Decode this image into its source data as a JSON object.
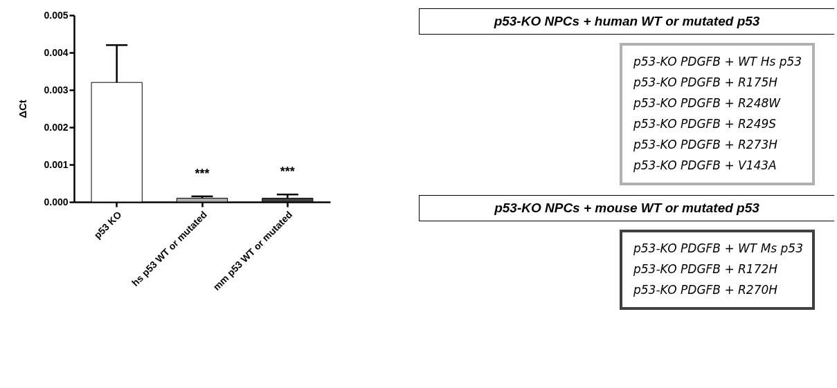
{
  "chart_data": {
    "type": "bar",
    "ylabel": "ΔCt",
    "categories": [
      "p53 KO",
      "hs p53 WT or mutated",
      "mm p53 WT or mutated"
    ],
    "values": [
      0.0032,
      0.0001,
      0.0001
    ],
    "errors": [
      [
        0.0032,
        0.0042
      ],
      [
        0.0001,
        0.00015
      ],
      [
        0.0001,
        0.0002
      ]
    ],
    "colors": [
      "#ffffff",
      "#b0b0b0",
      "#404040"
    ],
    "ylim": [
      0,
      0.005
    ],
    "yticks": [
      {
        "value": 0,
        "label": "0.000"
      },
      0.001,
      0.002,
      0.003,
      0.004,
      0.005
    ],
    "grid": false,
    "annotations": [
      {
        "text": "***",
        "x": "hs p53 WT or mutated",
        "y": 0.00015
      },
      {
        "text": "***",
        "x": "mm p53 WT or mutated",
        "y": 0.0002
      },
      "p53-KO NPCs + human WT or mutated p53",
      "p53-KO PDGFB + WT Hs p53\np53-KO PDGFB + R175H\np53-KO PDGFB + R248W\np53-KO PDGFB + R249S\np53-KO PDGFB + R273H\np53-KO PDGFB + V143A",
      "p53-KO NPCs + mouse WT or mutated p53",
      "p53-KO PDGFB + WT Ms p53\np53-KO PDGFB + R172H\np53-KO PDGFB + R270H"
    ]
  }
}
